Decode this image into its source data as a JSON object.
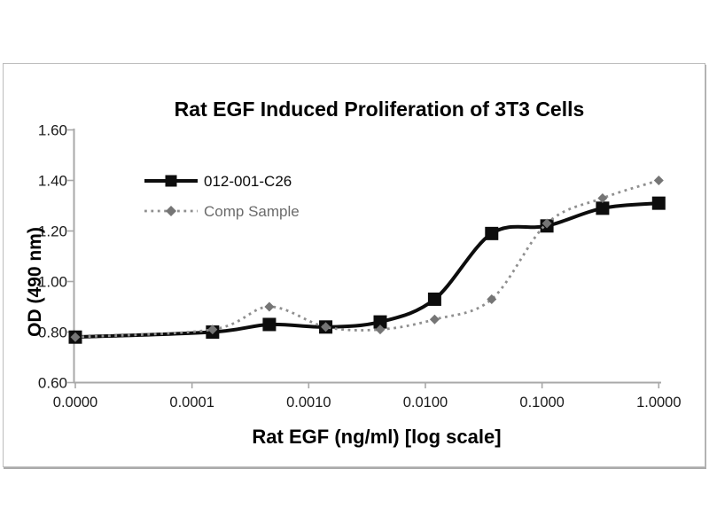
{
  "chart_data": {
    "type": "line",
    "title": "Rat EGF Induced Proliferation of 3T3 Cells",
    "xlabel": "Rat EGF (ng/ml) [log scale]",
    "ylabel": "OD (490 nm)",
    "x_scale": "log",
    "grid": false,
    "legend_position": "upper-left-inside",
    "x_tick_labels": [
      "0.0000",
      "0.0001",
      "0.0010",
      "0.0100",
      "0.1000",
      "1.0000"
    ],
    "y_tick_labels": [
      "0.60",
      "0.80",
      "1.00",
      "1.20",
      "1.40",
      "1.60"
    ],
    "y_ticks": [
      0.6,
      0.8,
      1.0,
      1.2,
      1.4,
      1.6
    ],
    "ylim": [
      0.6,
      1.6
    ],
    "xlim_log": [
      -5,
      0
    ],
    "x": [
      0,
      0.00015,
      0.00046,
      0.0014,
      0.0041,
      0.012,
      0.037,
      0.11,
      0.33,
      1.0
    ],
    "series": [
      {
        "name": "012-001-C26",
        "color": "#0d0d0d",
        "marker": "square",
        "line_style": "solid",
        "values": [
          0.78,
          0.8,
          0.83,
          0.82,
          0.84,
          0.93,
          1.19,
          1.22,
          1.29,
          1.31
        ]
      },
      {
        "name": "Comp Sample",
        "color": "#8f8f8f",
        "marker_color": "#757575",
        "marker": "diamond",
        "line_style": "dotted",
        "values": [
          0.78,
          0.81,
          0.9,
          0.82,
          0.81,
          0.85,
          0.93,
          1.23,
          1.33,
          1.4
        ]
      }
    ],
    "axis_color": "#a8a8a8",
    "tick_label_color": "#1a1a1a"
  }
}
